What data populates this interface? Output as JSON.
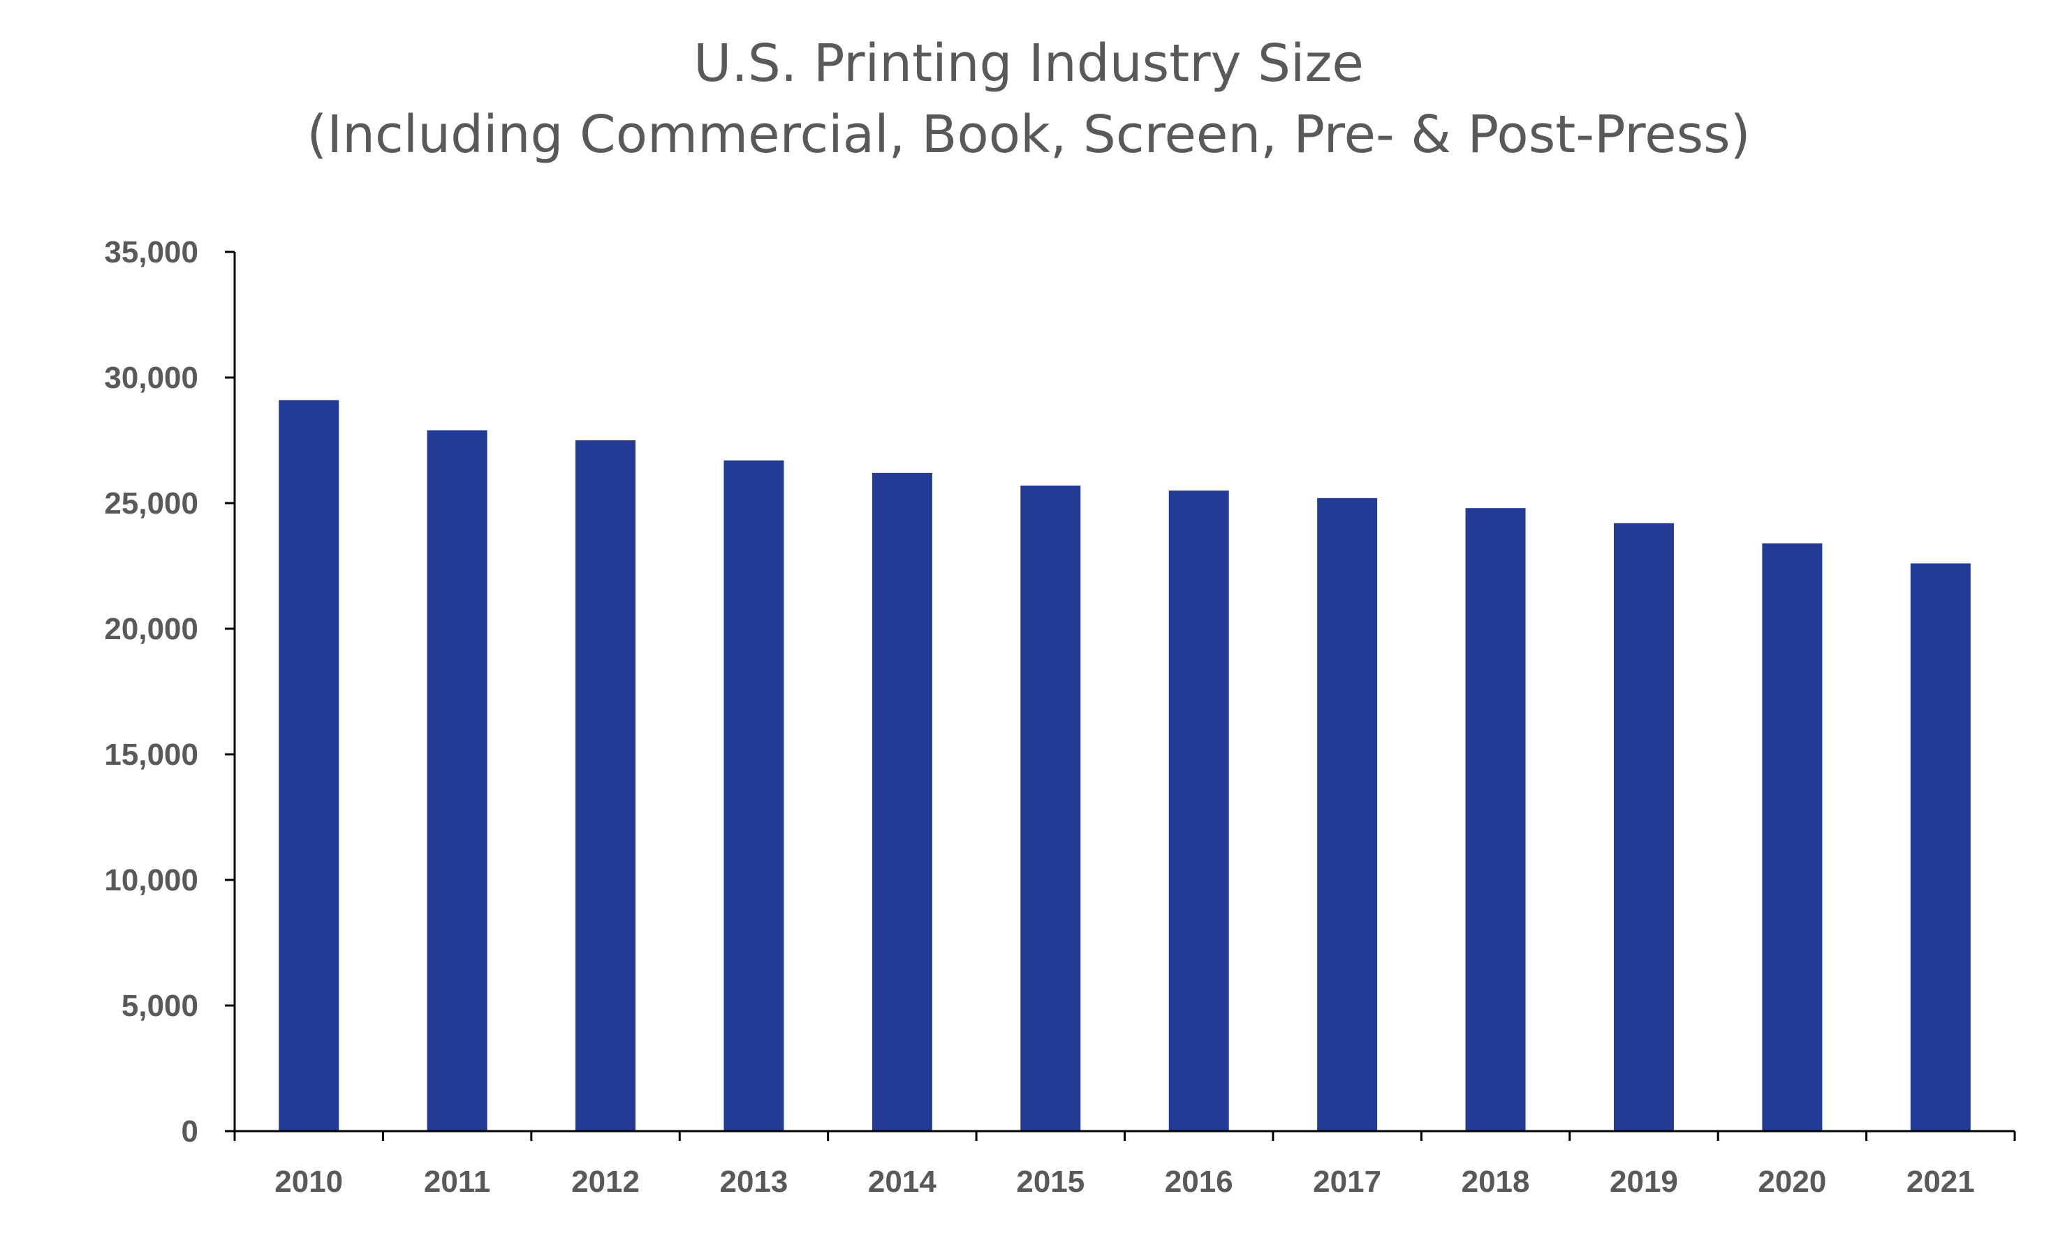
{
  "chart_data": {
    "type": "bar",
    "title": [
      "U.S. Printing Industry Size",
      "(Including Commercial, Book, Screen, Pre- & Post-Press)"
    ],
    "xlabel": "",
    "ylabel": "",
    "categories": [
      "2010",
      "2011",
      "2012",
      "2013",
      "2014",
      "2015",
      "2016",
      "2017",
      "2018",
      "2019",
      "2020",
      "2021"
    ],
    "values": [
      29100,
      27900,
      27500,
      26700,
      26200,
      25700,
      25500,
      25200,
      24800,
      24200,
      23400,
      22600
    ],
    "ylim": [
      0,
      35000
    ],
    "yticks": [
      "0",
      "5,000",
      "10,000",
      "15,000",
      "20,000",
      "25,000",
      "30,000",
      "35,000"
    ],
    "grid": false,
    "legend": "none",
    "bar_color": "#233B95"
  }
}
